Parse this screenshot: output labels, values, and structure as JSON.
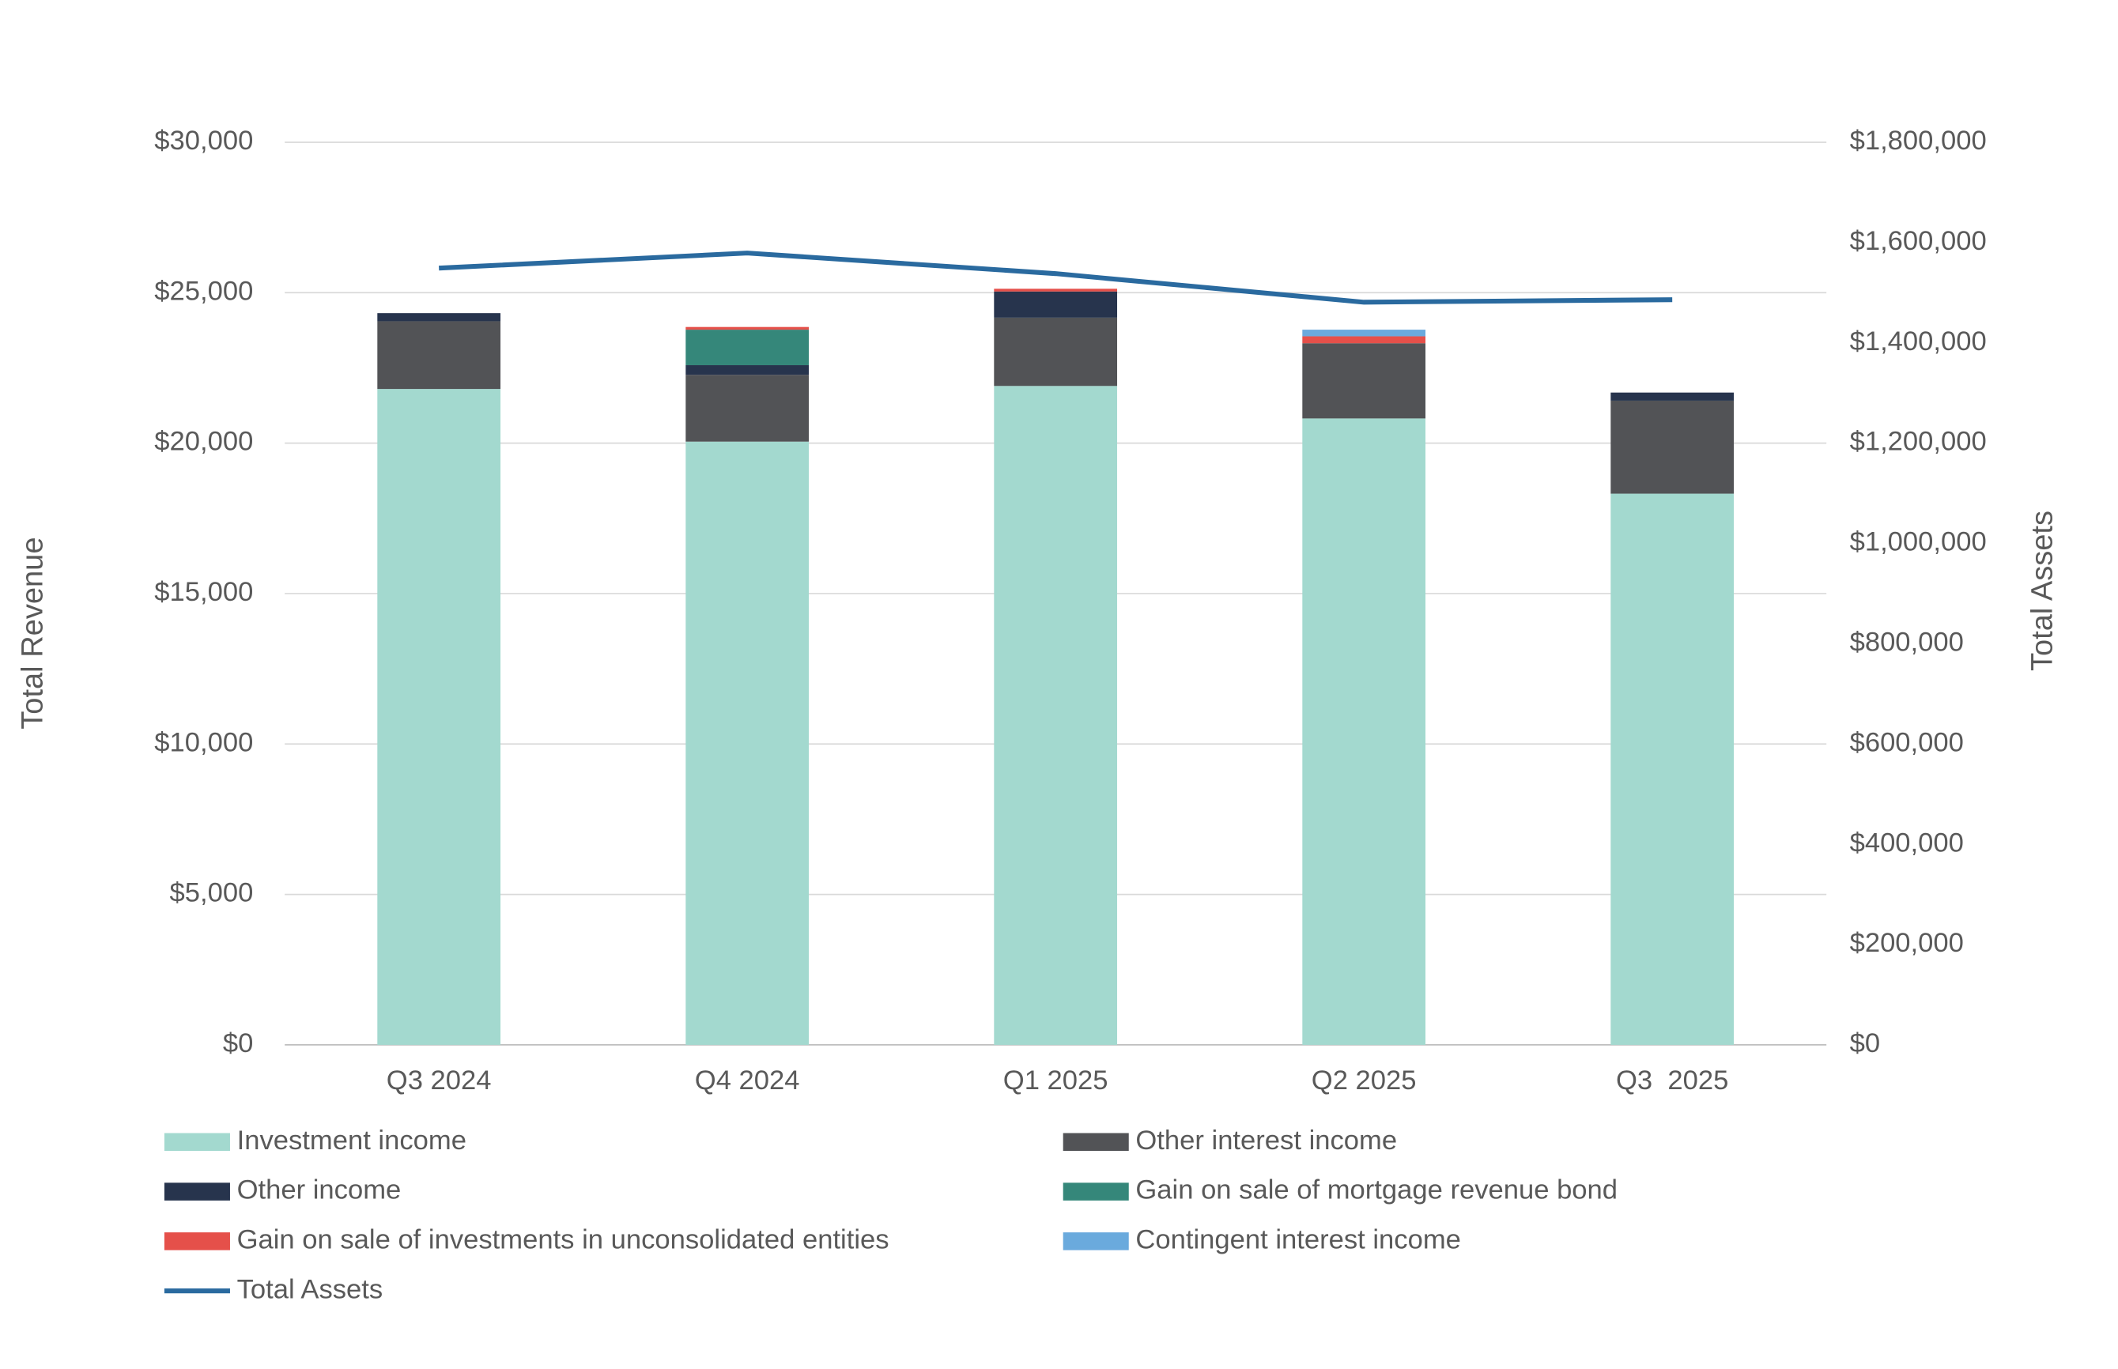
{
  "chart_data": {
    "type": "bar",
    "y_label": "Total Revenue",
    "y2_label": "Total Assets",
    "categories": [
      "Q3 2024",
      "Q4 2024",
      "Q1 2025",
      "Q2 2025",
      "Q3  2025"
    ],
    "stacked": true,
    "grid": true,
    "ylim": [
      0,
      30000
    ],
    "yticks": [
      {
        "value": 0,
        "label": "$0"
      },
      {
        "value": 5000,
        "label": "$5,000"
      },
      {
        "value": 10000,
        "label": "$10,000"
      },
      {
        "value": 15000,
        "label": "$15,000"
      },
      {
        "value": 20000,
        "label": "$20,000"
      },
      {
        "value": 25000,
        "label": "$25,000"
      },
      {
        "value": 30000,
        "label": "$30,000"
      }
    ],
    "y2lim": [
      0,
      1800000
    ],
    "y2ticks": [
      {
        "value": 0,
        "label": "$0"
      },
      {
        "value": 200000,
        "label": "$200,000"
      },
      {
        "value": 400000,
        "label": "$400,000"
      },
      {
        "value": 600000,
        "label": "$600,000"
      },
      {
        "value": 800000,
        "label": "$800,000"
      },
      {
        "value": 1000000,
        "label": "$1,000,000"
      },
      {
        "value": 1200000,
        "label": "$1,200,000"
      },
      {
        "value": 1400000,
        "label": "$1,400,000"
      },
      {
        "value": 1600000,
        "label": "$1,600,000"
      },
      {
        "value": 1800000,
        "label": "$1,800,000"
      }
    ],
    "legend": "bottom",
    "series": [
      {
        "name": "Investment income",
        "color": "#a3d9cf",
        "values": [
          21800,
          20050,
          21900,
          20820,
          18320
        ]
      },
      {
        "name": "Other interest income",
        "color": "#525356",
        "values": [
          2250,
          2220,
          2270,
          2500,
          3090
        ]
      },
      {
        "name": "Other income",
        "color": "#27344d",
        "values": [
          270,
          320,
          870,
          null,
          270
        ]
      },
      {
        "name": "Gain on sale of mortgage revenue bond",
        "color": "#35877a",
        "values": [
          null,
          1180,
          null,
          null,
          null
        ]
      },
      {
        "name": "Gain on sale of investments in unconsolidated entities",
        "color": "#e5504a",
        "values": [
          null,
          90,
          90,
          230,
          null
        ]
      },
      {
        "name": "Contingent interest income",
        "color": "#6aaadd",
        "values": [
          null,
          null,
          null,
          220,
          null
        ]
      },
      {
        "name": "Total Assets",
        "color": "#2a6a9f",
        "type": "line",
        "axis": "y2",
        "values": [
          1549000,
          1579000,
          1538000,
          1481000,
          1486000
        ]
      }
    ]
  }
}
